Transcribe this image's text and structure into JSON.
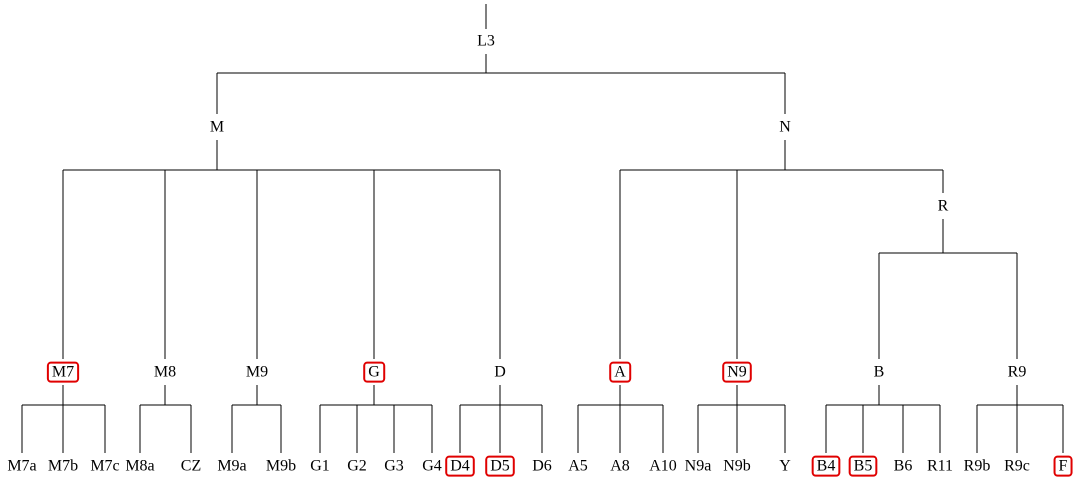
{
  "tree": {
    "label": "L3",
    "children": [
      {
        "label": "M",
        "children": [
          {
            "label": "M7",
            "boxed": true,
            "children": [
              {
                "label": "M7a"
              },
              {
                "label": "M7b"
              },
              {
                "label": "M7c"
              }
            ]
          },
          {
            "label": "M8",
            "children": [
              {
                "label": "M8a"
              },
              {
                "label": "CZ"
              }
            ]
          },
          {
            "label": "M9",
            "children": [
              {
                "label": "M9a"
              },
              {
                "label": "M9b"
              }
            ]
          },
          {
            "label": "G",
            "boxed": true,
            "children": [
              {
                "label": "G1"
              },
              {
                "label": "G2"
              },
              {
                "label": "G3"
              },
              {
                "label": "G4"
              }
            ]
          },
          {
            "label": "D",
            "children": [
              {
                "label": "D4",
                "boxed": true
              },
              {
                "label": "D5",
                "boxed": true
              },
              {
                "label": "D6"
              }
            ]
          }
        ]
      },
      {
        "label": "N",
        "children": [
          {
            "label": "A",
            "boxed": true,
            "children": [
              {
                "label": "A5"
              },
              {
                "label": "A8"
              },
              {
                "label": "A10"
              }
            ]
          },
          {
            "label": "N9",
            "boxed": true,
            "children": [
              {
                "label": "N9a"
              },
              {
                "label": "N9b"
              },
              {
                "label": "Y"
              }
            ]
          },
          {
            "label": "R",
            "children": [
              {
                "label": "B",
                "children": [
                  {
                    "label": "B4",
                    "boxed": true
                  },
                  {
                    "label": "B5",
                    "boxed": true
                  },
                  {
                    "label": "B6"
                  },
                  {
                    "label": "R11"
                  }
                ]
              },
              {
                "label": "R9",
                "children": [
                  {
                    "label": "R9b"
                  },
                  {
                    "label": "R9c"
                  },
                  {
                    "label": "F",
                    "boxed": true
                  }
                ]
              }
            ]
          }
        ]
      }
    ]
  }
}
